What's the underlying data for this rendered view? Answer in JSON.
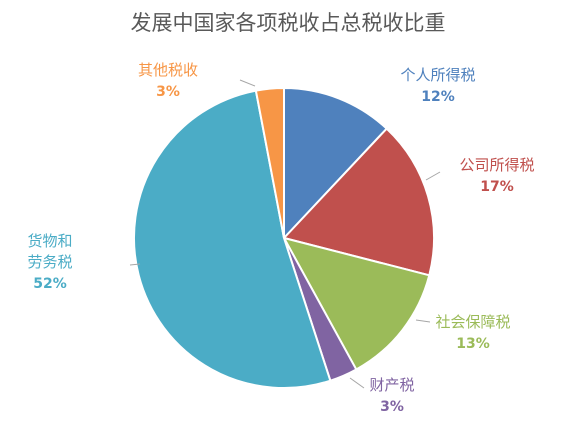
{
  "chart_data": {
    "type": "pie",
    "title": "发展中国家各项税收占总税收比重",
    "slices": [
      {
        "name": "个人所得税",
        "value": 12,
        "label": "12%",
        "color": "#4F81BD"
      },
      {
        "name": "公司所得税",
        "value": 17,
        "label": "17%",
        "color": "#C0504D"
      },
      {
        "name": "社会保障税",
        "value": 13,
        "label": "13%",
        "color": "#9BBB59"
      },
      {
        "name": "财产税",
        "value": 3,
        "label": "3%",
        "color": "#8064A2"
      },
      {
        "name": "货物和劳务税",
        "name_lines": [
          "货物和",
          "劳务税"
        ],
        "value": 52,
        "label": "52%",
        "color": "#4BACC6"
      },
      {
        "name": "其他税收",
        "value": 3,
        "label": "3%",
        "color": "#F79646"
      }
    ],
    "legend": "none",
    "label_placement": "outside with leader lines"
  }
}
